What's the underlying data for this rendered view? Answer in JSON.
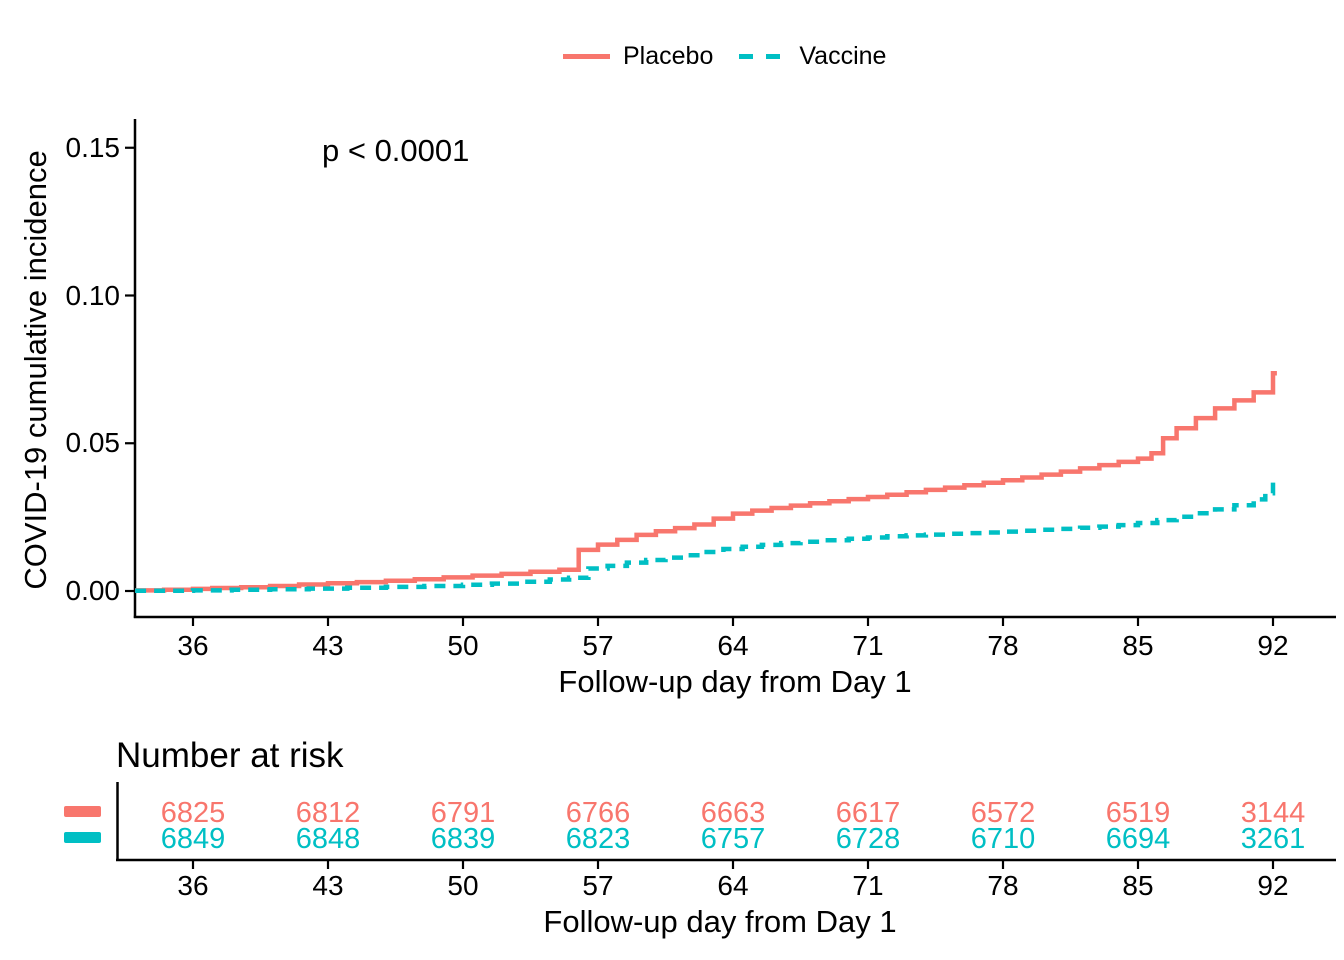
{
  "chart_data": {
    "type": "line",
    "subtype": "kaplan-meier-step-cumulative-incidence",
    "title": "",
    "xlabel": "Follow-up day from Day 1",
    "ylabel": "COVID-19 cumulative incidence",
    "p_value": "p < 0.0001",
    "xlim": [
      33,
      95
    ],
    "ylim": [
      0,
      0.155
    ],
    "xticks": [
      36,
      43,
      50,
      57,
      64,
      71,
      78,
      85,
      92
    ],
    "yticks": [
      {
        "label": "0.00",
        "value": 0.0
      },
      {
        "label": "0.05",
        "value": 0.05
      },
      {
        "label": "0.10",
        "value": 0.1
      },
      {
        "label": "0.15",
        "value": 0.15
      }
    ],
    "grid": false,
    "legend_position": "top",
    "series": [
      {
        "name": "Placebo",
        "color": "#F8766D",
        "style": "solid",
        "step": true,
        "points": [
          [
            33,
            0.0002
          ],
          [
            34.5,
            0.0004
          ],
          [
            36,
            0.0007
          ],
          [
            37,
            0.001
          ],
          [
            38.5,
            0.0013
          ],
          [
            40,
            0.0017
          ],
          [
            41.5,
            0.0022
          ],
          [
            43,
            0.0026
          ],
          [
            44.5,
            0.003
          ],
          [
            46,
            0.0035
          ],
          [
            47.5,
            0.004
          ],
          [
            49,
            0.0046
          ],
          [
            50.5,
            0.0052
          ],
          [
            52,
            0.0058
          ],
          [
            53.5,
            0.0065
          ],
          [
            55,
            0.0072
          ],
          [
            56,
            0.0139
          ],
          [
            57,
            0.0157
          ],
          [
            58,
            0.0173
          ],
          [
            59,
            0.019
          ],
          [
            60,
            0.0202
          ],
          [
            61,
            0.0213
          ],
          [
            62,
            0.0225
          ],
          [
            63,
            0.0245
          ],
          [
            64,
            0.0262
          ],
          [
            65,
            0.0272
          ],
          [
            66,
            0.0281
          ],
          [
            67,
            0.0289
          ],
          [
            68,
            0.0297
          ],
          [
            69,
            0.0304
          ],
          [
            70,
            0.0311
          ],
          [
            71,
            0.0318
          ],
          [
            72,
            0.0326
          ],
          [
            73,
            0.0334
          ],
          [
            74,
            0.0342
          ],
          [
            75,
            0.035
          ],
          [
            76,
            0.0358
          ],
          [
            77,
            0.0366
          ],
          [
            78,
            0.0375
          ],
          [
            79,
            0.0384
          ],
          [
            80,
            0.0394
          ],
          [
            81,
            0.0404
          ],
          [
            82,
            0.0415
          ],
          [
            83,
            0.0426
          ],
          [
            84,
            0.0437
          ],
          [
            85,
            0.0448
          ],
          [
            85.7,
            0.0466
          ],
          [
            86.3,
            0.0517
          ],
          [
            87,
            0.0551
          ],
          [
            88,
            0.0585
          ],
          [
            89,
            0.0618
          ],
          [
            90,
            0.0645
          ],
          [
            91,
            0.0672
          ],
          [
            92,
            0.0737
          ],
          [
            92.2,
            0.0737
          ]
        ]
      },
      {
        "name": "Vaccine",
        "color": "#00BFC4",
        "style": "dashed",
        "step": true,
        "points": [
          [
            33,
            0.0001
          ],
          [
            36,
            0.0002
          ],
          [
            38,
            0.0004
          ],
          [
            40,
            0.0006
          ],
          [
            42,
            0.0008
          ],
          [
            44,
            0.0011
          ],
          [
            46,
            0.0014
          ],
          [
            48,
            0.0017
          ],
          [
            50,
            0.0021
          ],
          [
            51.5,
            0.0025
          ],
          [
            53,
            0.0031
          ],
          [
            54.5,
            0.0039
          ],
          [
            55.5,
            0.0045
          ],
          [
            56.5,
            0.0076
          ],
          [
            57.5,
            0.0085
          ],
          [
            58.5,
            0.0096
          ],
          [
            59.5,
            0.0105
          ],
          [
            60.5,
            0.0113
          ],
          [
            61.5,
            0.0121
          ],
          [
            62.5,
            0.0132
          ],
          [
            63.5,
            0.0142
          ],
          [
            64.5,
            0.015
          ],
          [
            65.5,
            0.0156
          ],
          [
            66.5,
            0.0162
          ],
          [
            67.5,
            0.0167
          ],
          [
            68.5,
            0.0172
          ],
          [
            70,
            0.0177
          ],
          [
            71,
            0.0181
          ],
          [
            72,
            0.0185
          ],
          [
            73,
            0.0188
          ],
          [
            74,
            0.0191
          ],
          [
            75,
            0.0194
          ],
          [
            76,
            0.0196
          ],
          [
            77,
            0.0198
          ],
          [
            78,
            0.0201
          ],
          [
            79,
            0.0204
          ],
          [
            80,
            0.0207
          ],
          [
            81,
            0.021
          ],
          [
            82,
            0.0214
          ],
          [
            83,
            0.0218
          ],
          [
            84,
            0.0223
          ],
          [
            85,
            0.023
          ],
          [
            86,
            0.024
          ],
          [
            87,
            0.0251
          ],
          [
            88,
            0.0263
          ],
          [
            89,
            0.0276
          ],
          [
            90,
            0.029
          ],
          [
            91,
            0.031
          ],
          [
            91.6,
            0.0331
          ],
          [
            92,
            0.037
          ],
          [
            92.2,
            0.037
          ]
        ]
      }
    ],
    "number_at_risk": {
      "title": "Number at risk",
      "xlabel": "Follow-up day from Day 1",
      "xticks": [
        36,
        43,
        50,
        57,
        64,
        71,
        78,
        85,
        92
      ],
      "rows": [
        {
          "name": "Placebo",
          "color": "#F8766D",
          "values": [
            "6825",
            "6812",
            "6791",
            "6766",
            "6663",
            "6617",
            "6572",
            "6519",
            "3144"
          ]
        },
        {
          "name": "Vaccine",
          "color": "#00BFC4",
          "values": [
            "6849",
            "6848",
            "6839",
            "6823",
            "6757",
            "6728",
            "6710",
            "6694",
            "3261"
          ]
        }
      ]
    }
  }
}
